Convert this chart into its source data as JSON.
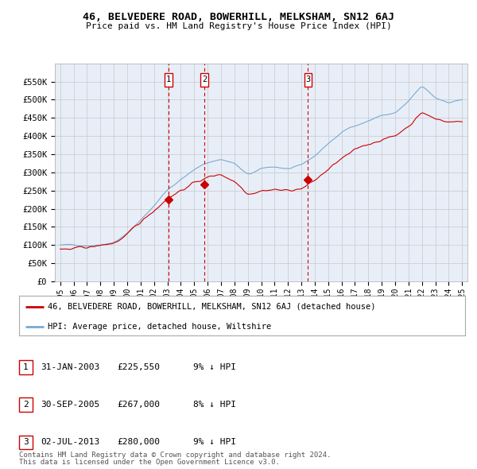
{
  "title": "46, BELVEDERE ROAD, BOWERHILL, MELKSHAM, SN12 6AJ",
  "subtitle": "Price paid vs. HM Land Registry's House Price Index (HPI)",
  "red_label": "46, BELVEDERE ROAD, BOWERHILL, MELKSHAM, SN12 6AJ (detached house)",
  "blue_label": "HPI: Average price, detached house, Wiltshire",
  "footer1": "Contains HM Land Registry data © Crown copyright and database right 2024.",
  "footer2": "This data is licensed under the Open Government Licence v3.0.",
  "transactions": [
    {
      "num": 1,
      "date": "31-JAN-2003",
      "price": "£225,550",
      "hpi_diff": "9% ↓ HPI",
      "year": 2003.08,
      "value": 225550
    },
    {
      "num": 2,
      "date": "30-SEP-2005",
      "price": "£267,000",
      "hpi_diff": "8% ↓ HPI",
      "year": 2005.75,
      "value": 267000
    },
    {
      "num": 3,
      "date": "02-JUL-2013",
      "price": "£280,000",
      "hpi_diff": "9% ↓ HPI",
      "year": 2013.5,
      "value": 280000
    }
  ],
  "ylim": [
    0,
    600000
  ],
  "yticks": [
    0,
    50000,
    100000,
    150000,
    200000,
    250000,
    300000,
    350000,
    400000,
    450000,
    500000,
    550000
  ],
  "ytick_labels": [
    "£0",
    "£50K",
    "£100K",
    "£150K",
    "£200K",
    "£250K",
    "£300K",
    "£350K",
    "£400K",
    "£450K",
    "£500K",
    "£550K"
  ],
  "bg_color": "#E8EEF8",
  "grid_color": "#C8C8C8",
  "red_color": "#CC0000",
  "blue_color": "#7AAAD0"
}
